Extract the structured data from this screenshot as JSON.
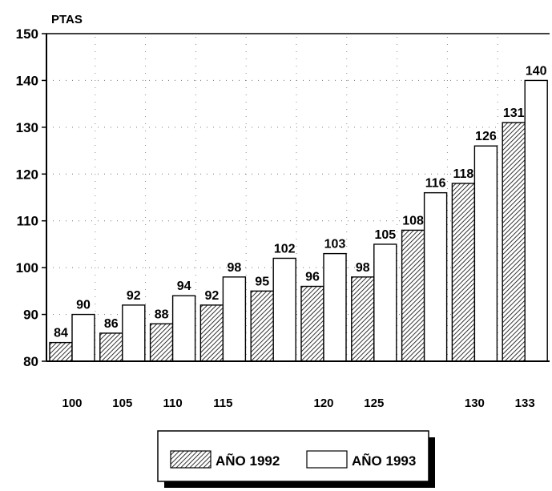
{
  "chart_data": {
    "type": "bar",
    "title": "",
    "ylabel": "PTAS",
    "xlabel": "",
    "ylim": [
      80,
      150
    ],
    "yticks": [
      80,
      90,
      100,
      110,
      120,
      130,
      140,
      150
    ],
    "grid": "dotted",
    "legend_position": "bottom-center",
    "categories": [
      "100",
      "105",
      "110",
      "115",
      "",
      "120",
      "125",
      "",
      "130",
      "133"
    ],
    "series": [
      {
        "name": "AÑO 1992",
        "pattern": "hatched",
        "values": [
          84,
          86,
          88,
          92,
          95,
          96,
          98,
          108,
          118,
          131
        ]
      },
      {
        "name": "AÑO 1993",
        "pattern": "white",
        "values": [
          90,
          92,
          94,
          98,
          102,
          103,
          105,
          116,
          126,
          140
        ]
      }
    ]
  }
}
